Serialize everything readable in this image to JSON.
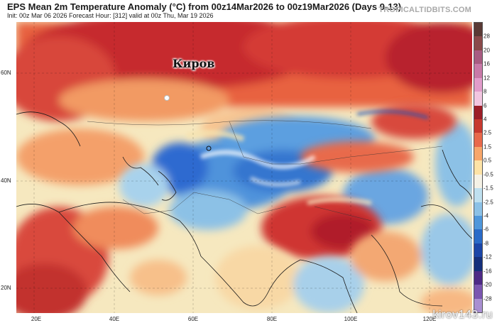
{
  "header": {
    "title": "EPS Mean 2m Temperature Anomaly (°C) from 00z14Mar2026 to 00z19Mar2026 (Days 9-13)",
    "subtitle": "Init: 00z Mar 06 2026   Forecast Hour: [312]   valid at 00z Thu, Mar 19 2026",
    "site": "TROPICALTIDBITS.COM"
  },
  "map": {
    "lat_labels": [
      "60N",
      "40N",
      "20N"
    ],
    "lon_labels": [
      "20E",
      "40E",
      "60E",
      "80E",
      "100E",
      "120E"
    ],
    "city": "Киров",
    "watermark": "kirov143.ru"
  },
  "colorbar": {
    "labels": [
      "28",
      "20",
      "16",
      "12",
      "8",
      "6",
      "4",
      "2.5",
      "1.5",
      "0.5",
      "-0.5",
      "-1.5",
      "-2.5",
      "-4",
      "-6",
      "-8",
      "-12",
      "-16",
      "-20",
      "-28"
    ],
    "colors": [
      "#5a3a35",
      "#8a4a4a",
      "#a85c82",
      "#c87aa8",
      "#e29ccb",
      "#f2c6e0",
      "#9c1e28",
      "#c7392f",
      "#e8694b",
      "#f7a66a",
      "#fde3a6",
      "#f5f2e6",
      "#bfe0ef",
      "#8cc1e6",
      "#4f97db",
      "#2a6bc8",
      "#1b46a8",
      "#15307c",
      "#4e2a86",
      "#7b56b0",
      "#a98fd1"
    ]
  },
  "colors": {
    "warm_strong": "#b8202e",
    "warm": "#e4573e",
    "mild_warm": "#f7b77a",
    "neutral": "#f6ecc7",
    "cool": "#8cc1e6",
    "cold": "#2e6bd0"
  }
}
